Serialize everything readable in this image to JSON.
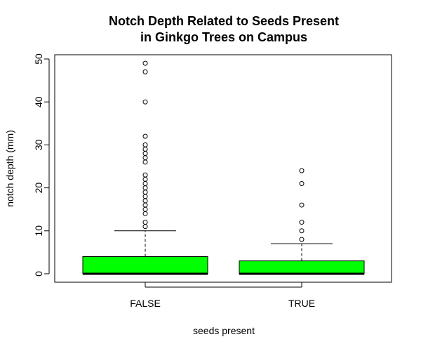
{
  "chart_data": {
    "type": "boxplot",
    "title_lines": [
      "Notch Depth Related to Seeds Present",
      "in Ginkgo Trees on Campus"
    ],
    "xlabel": "seeds present",
    "ylabel": "notch depth (mm)",
    "ylim": [
      -2,
      52
    ],
    "yticks": [
      0,
      10,
      20,
      30,
      40,
      50
    ],
    "box_color": "#00ff00",
    "categories": [
      "FALSE",
      "TRUE"
    ],
    "boxes": [
      {
        "category": "FALSE",
        "q1": 0,
        "median": 0,
        "q3": 4,
        "whisker_low": 0,
        "whisker_high": 10,
        "outliers": [
          11,
          12,
          14,
          15,
          16,
          17,
          18,
          19,
          20,
          21,
          22,
          23,
          26,
          27,
          28,
          29,
          30,
          32,
          40,
          47,
          49
        ]
      },
      {
        "category": "TRUE",
        "q1": 0,
        "median": 0,
        "q3": 3,
        "whisker_low": 0,
        "whisker_high": 7,
        "outliers": [
          8,
          10,
          12,
          16,
          21,
          24
        ]
      }
    ]
  }
}
